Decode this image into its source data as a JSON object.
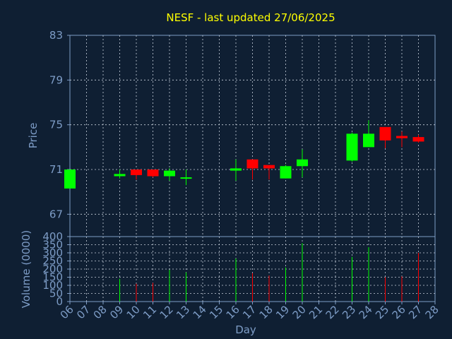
{
  "chart_data": [
    {
      "type": "candlestick",
      "title": "NESF - last updated 27/06/2025",
      "ylabel": "Price",
      "ylim": [
        65,
        83
      ],
      "yticks": [
        67,
        71,
        75,
        79,
        83
      ],
      "x": [
        "06",
        "07",
        "08",
        "09",
        "10",
        "11",
        "12",
        "13",
        "14",
        "15",
        "16",
        "17",
        "18",
        "19",
        "20",
        "21",
        "22",
        "23",
        "24",
        "25",
        "26",
        "27",
        "28"
      ],
      "grid": true,
      "colors": {
        "up": "#00ff00",
        "down": "#ff0000",
        "background": "#0f1f33",
        "axis": "#7d9cc6",
        "title": "#ffff00"
      },
      "candles": [
        {
          "x": "06",
          "open": 69.3,
          "high": 71.0,
          "low": 69.3,
          "close": 71.0
        },
        {
          "x": "09",
          "open": 70.4,
          "high": 71.0,
          "low": 70.2,
          "close": 70.6
        },
        {
          "x": "10",
          "open": 71.0,
          "high": 71.0,
          "low": 70.1,
          "close": 70.5
        },
        {
          "x": "11",
          "open": 71.0,
          "high": 71.0,
          "low": 70.3,
          "close": 70.4
        },
        {
          "x": "12",
          "open": 70.4,
          "high": 71.1,
          "low": 70.0,
          "close": 70.9
        },
        {
          "x": "13",
          "open": 70.2,
          "high": 71.0,
          "low": 69.6,
          "close": 70.3
        },
        {
          "x": "16",
          "open": 70.9,
          "high": 71.9,
          "low": 70.0,
          "close": 71.1
        },
        {
          "x": "17",
          "open": 71.9,
          "high": 71.9,
          "low": 70.1,
          "close": 71.1
        },
        {
          "x": "18",
          "open": 71.4,
          "high": 71.4,
          "low": 70.1,
          "close": 71.1
        },
        {
          "x": "19",
          "open": 70.2,
          "high": 71.4,
          "low": 70.2,
          "close": 71.3
        },
        {
          "x": "20",
          "open": 71.3,
          "high": 72.8,
          "low": 70.3,
          "close": 71.9
        },
        {
          "x": "23",
          "open": 71.8,
          "high": 74.3,
          "low": 71.7,
          "close": 74.2
        },
        {
          "x": "24",
          "open": 73.0,
          "high": 75.4,
          "low": 73.0,
          "close": 74.2
        },
        {
          "x": "25",
          "open": 74.8,
          "high": 74.8,
          "low": 72.9,
          "close": 73.6
        },
        {
          "x": "26",
          "open": 74.0,
          "high": 74.4,
          "low": 73.0,
          "close": 73.8
        },
        {
          "x": "27",
          "open": 73.9,
          "high": 74.1,
          "low": 73.4,
          "close": 73.5
        }
      ]
    },
    {
      "type": "bar",
      "ylabel": "Volume (0000)",
      "xlabel": "Day",
      "ylim": [
        0,
        400
      ],
      "yticks": [
        0,
        50,
        100,
        150,
        200,
        250,
        300,
        350,
        400
      ],
      "x": [
        "06",
        "07",
        "08",
        "09",
        "10",
        "11",
        "12",
        "13",
        "14",
        "15",
        "16",
        "17",
        "18",
        "19",
        "20",
        "21",
        "22",
        "23",
        "24",
        "25",
        "26",
        "27",
        "28"
      ],
      "grid": true,
      "bars": [
        {
          "x": "09",
          "value": 140,
          "direction": "up"
        },
        {
          "x": "10",
          "value": 110,
          "direction": "down"
        },
        {
          "x": "11",
          "value": 115,
          "direction": "down"
        },
        {
          "x": "12",
          "value": 195,
          "direction": "up"
        },
        {
          "x": "13",
          "value": 180,
          "direction": "up"
        },
        {
          "x": "16",
          "value": 265,
          "direction": "up"
        },
        {
          "x": "17",
          "value": 175,
          "direction": "down"
        },
        {
          "x": "18",
          "value": 160,
          "direction": "down"
        },
        {
          "x": "19",
          "value": 210,
          "direction": "up"
        },
        {
          "x": "20",
          "value": 360,
          "direction": "up"
        },
        {
          "x": "23",
          "value": 275,
          "direction": "up"
        },
        {
          "x": "24",
          "value": 335,
          "direction": "up"
        },
        {
          "x": "25",
          "value": 150,
          "direction": "down"
        },
        {
          "x": "26",
          "value": 155,
          "direction": "down"
        },
        {
          "x": "27",
          "value": 300,
          "direction": "down"
        }
      ]
    }
  ]
}
